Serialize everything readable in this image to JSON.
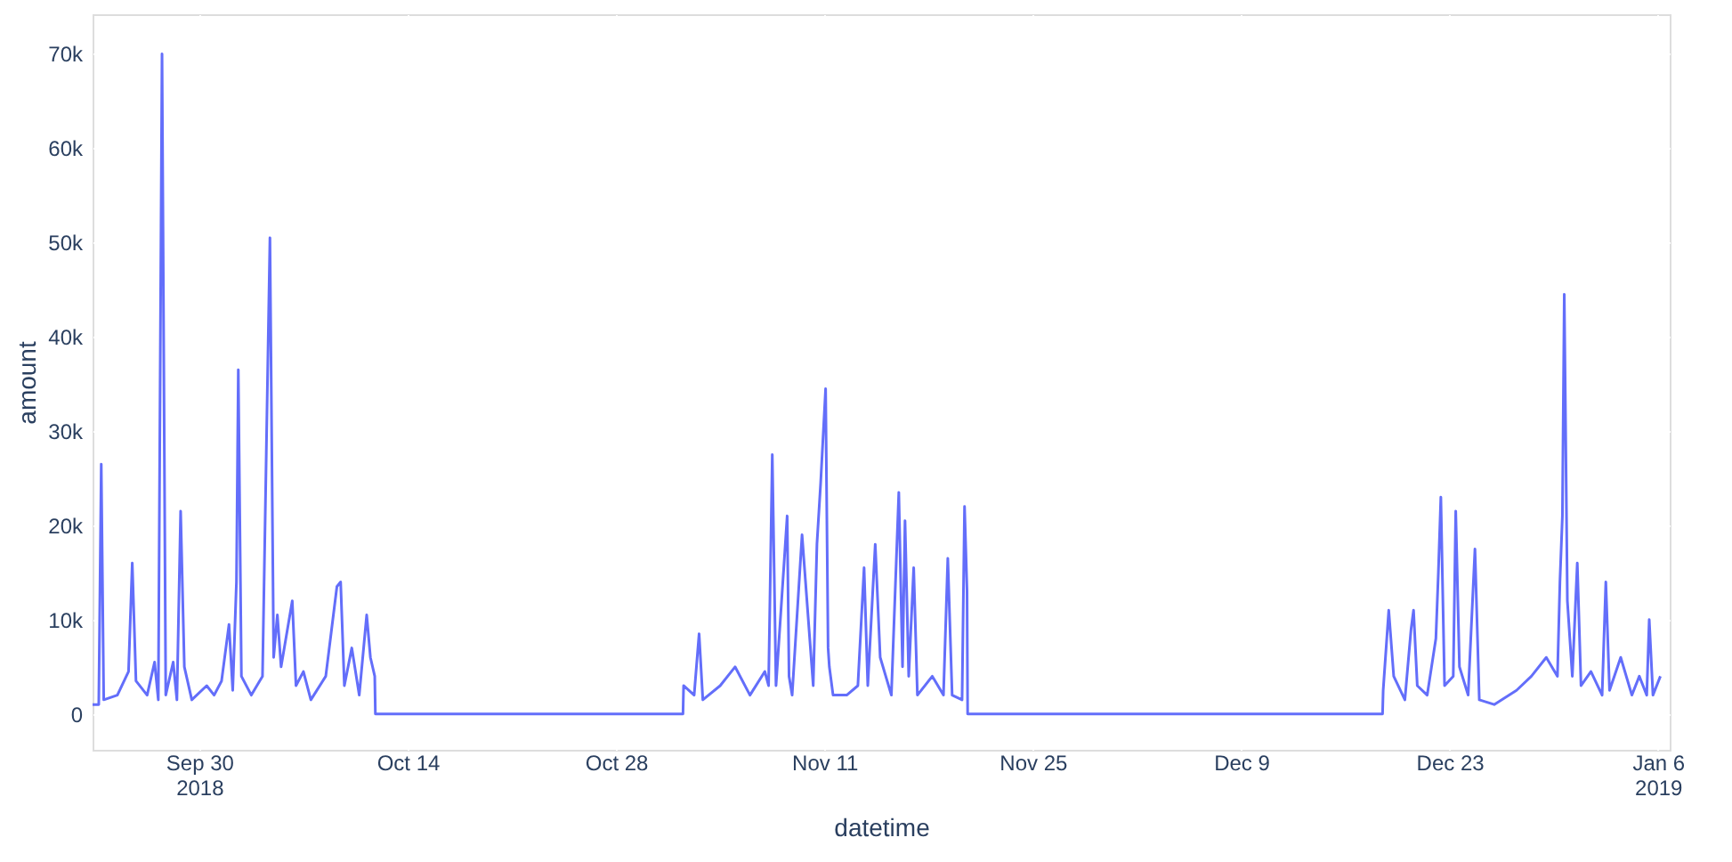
{
  "chart_data": {
    "type": "line",
    "xlabel": "datetime",
    "ylabel": "amount",
    "grid": true,
    "marker": "none",
    "line_style": "solid",
    "xlim": [
      "2018-09-22T20:00",
      "2019-01-06T19:00"
    ],
    "ylim": [
      -3800,
      74200
    ],
    "xticks": [
      {
        "value": "2018-09-30",
        "label": "Sep 30\n2018"
      },
      {
        "value": "2018-10-14",
        "label": "Oct 14"
      },
      {
        "value": "2018-10-28",
        "label": "Oct 28"
      },
      {
        "value": "2018-11-11",
        "label": "Nov 11"
      },
      {
        "value": "2018-11-25",
        "label": "Nov 25"
      },
      {
        "value": "2018-12-09",
        "label": "Dec 9"
      },
      {
        "value": "2018-12-23",
        "label": "Dec 23"
      },
      {
        "value": "2019-01-06",
        "label": "Jan 6\n2019"
      }
    ],
    "yticks": [
      0,
      {
        "value": 10000,
        "label": "10k"
      },
      {
        "value": 20000,
        "label": "20k"
      },
      {
        "value": 30000,
        "label": "30k"
      },
      {
        "value": 40000,
        "label": "40k"
      },
      {
        "value": 50000,
        "label": "50k"
      },
      {
        "value": 60000,
        "label": "60k"
      },
      {
        "value": 70000,
        "label": "70k"
      }
    ],
    "series": [
      {
        "color": "#636efa",
        "x": [
          "2018-09-22T20:00",
          "2018-09-23T06:00",
          "2018-09-23T10:00",
          "2018-09-23T14:00",
          "2018-09-24T12:00",
          "2018-09-25T06:00",
          "2018-09-25T12:00",
          "2018-09-25T18:00",
          "2018-09-26T12:00",
          "2018-09-27T00:00",
          "2018-09-27T06:00",
          "2018-09-27T12:00",
          "2018-09-27T18:00",
          "2018-09-28T06:00",
          "2018-09-28T12:00",
          "2018-09-28T18:00",
          "2018-09-29T00:00",
          "2018-09-29T12:00",
          "2018-09-30T12:00",
          "2018-10-01T00:00",
          "2018-10-01T12:00",
          "2018-10-02T00:00",
          "2018-10-02T06:00",
          "2018-10-02T12:00",
          "2018-10-02T15:00",
          "2018-10-02T20:00",
          "2018-10-03T12:00",
          "2018-10-04T06:00",
          "2018-10-04T18:00",
          "2018-10-05T00:00",
          "2018-10-05T06:00",
          "2018-10-05T12:00",
          "2018-10-06T06:00",
          "2018-10-06T12:00",
          "2018-10-07T00:00",
          "2018-10-07T12:00",
          "2018-10-08T12:00",
          "2018-10-09T06:00",
          "2018-10-09T12:00",
          "2018-10-09T18:00",
          "2018-10-10T06:00",
          "2018-10-10T18:00",
          "2018-10-11T06:00",
          "2018-10-11T12:00",
          "2018-10-11T19:00",
          "2018-10-11T20:00",
          "2018-11-01T12:00",
          "2018-11-01T13:00",
          "2018-11-02T06:00",
          "2018-11-02T14:00",
          "2018-11-02T20:00",
          "2018-11-04T00:00",
          "2018-11-05T00:00",
          "2018-11-06T00:00",
          "2018-11-07T00:00",
          "2018-11-07T06:00",
          "2018-11-07T12:00",
          "2018-11-07T18:00",
          "2018-11-08T12:00",
          "2018-11-08T15:00",
          "2018-11-08T20:00",
          "2018-11-09T12:00",
          "2018-11-10T06:00",
          "2018-11-10T12:00",
          "2018-11-10T18:00",
          "2018-11-11T02:00",
          "2018-11-11T06:00",
          "2018-11-11T08:00",
          "2018-11-11T14:00",
          "2018-11-12T12:00",
          "2018-11-13T06:00",
          "2018-11-13T16:00",
          "2018-11-13T22:00",
          "2018-11-14T10:00",
          "2018-11-14T18:00",
          "2018-11-15T12:00",
          "2018-11-16T00:00",
          "2018-11-16T06:00",
          "2018-11-16T10:00",
          "2018-11-16T16:00",
          "2018-11-17T00:00",
          "2018-11-17T06:00",
          "2018-11-18T06:00",
          "2018-11-19T00:00",
          "2018-11-19T07:00",
          "2018-11-19T14:00",
          "2018-11-20T06:00",
          "2018-11-20T10:00",
          "2018-11-20T14:00",
          "2018-11-20T15:00",
          "2018-12-18T12:00",
          "2018-12-18T13:00",
          "2018-12-18T22:00",
          "2018-12-19T06:00",
          "2018-12-20T00:00",
          "2018-12-20T10:00",
          "2018-12-20T14:00",
          "2018-12-20T20:00",
          "2018-12-21T12:00",
          "2018-12-22T02:00",
          "2018-12-22T06:00",
          "2018-12-22T10:00",
          "2018-12-22T16:00",
          "2018-12-23T06:00",
          "2018-12-23T10:00",
          "2018-12-23T16:00",
          "2018-12-24T06:00",
          "2018-12-24T17:00",
          "2018-12-25T00:00",
          "2018-12-26T00:00",
          "2018-12-27T12:00",
          "2018-12-28T12:00",
          "2018-12-29T12:00",
          "2018-12-30T06:00",
          "2018-12-30T10:00",
          "2018-12-30T14:00",
          "2018-12-30T17:00",
          "2018-12-30T22:00",
          "2018-12-31T06:00",
          "2018-12-31T14:00",
          "2018-12-31T20:00",
          "2019-01-01T12:00",
          "2019-01-02T06:00",
          "2019-01-02T12:00",
          "2019-01-02T18:00",
          "2019-01-03T12:00",
          "2019-01-04T06:00",
          "2019-01-04T18:00",
          "2019-01-05T06:00",
          "2019-01-05T10:00",
          "2019-01-05T16:00",
          "2019-01-06T04:00"
        ],
        "values": [
          1000,
          1000,
          26500,
          1500,
          2000,
          4500,
          16000,
          3500,
          2000,
          5500,
          1500,
          70000,
          2000,
          5500,
          1500,
          21500,
          5000,
          1500,
          3000,
          2000,
          3500,
          9500,
          2500,
          14000,
          36500,
          4000,
          2000,
          4000,
          50500,
          6000,
          10500,
          5000,
          12000,
          3000,
          4500,
          1500,
          4000,
          13500,
          14000,
          3000,
          7000,
          2000,
          10500,
          6000,
          4000,
          0,
          0,
          3000,
          2000,
          8500,
          1500,
          3000,
          5000,
          2000,
          4500,
          3000,
          27500,
          3000,
          21000,
          4000,
          2000,
          19000,
          3000,
          18000,
          24500,
          34500,
          7000,
          5000,
          2000,
          2000,
          3000,
          15500,
          3000,
          18000,
          6000,
          2000,
          23500,
          5000,
          20500,
          4000,
          15500,
          2000,
          4000,
          2000,
          16500,
          2000,
          1500,
          22000,
          13000,
          0,
          0,
          2500,
          11000,
          4000,
          1500,
          9000,
          11000,
          3000,
          2000,
          8000,
          15000,
          23000,
          3000,
          4000,
          21500,
          5000,
          2000,
          17500,
          1500,
          1000,
          2500,
          4000,
          6000,
          4000,
          14000,
          21000,
          44500,
          12000,
          4000,
          16000,
          3000,
          4500,
          2000,
          14000,
          2500,
          6000,
          2000,
          4000,
          2000,
          10000,
          2000,
          4000
        ]
      }
    ]
  }
}
